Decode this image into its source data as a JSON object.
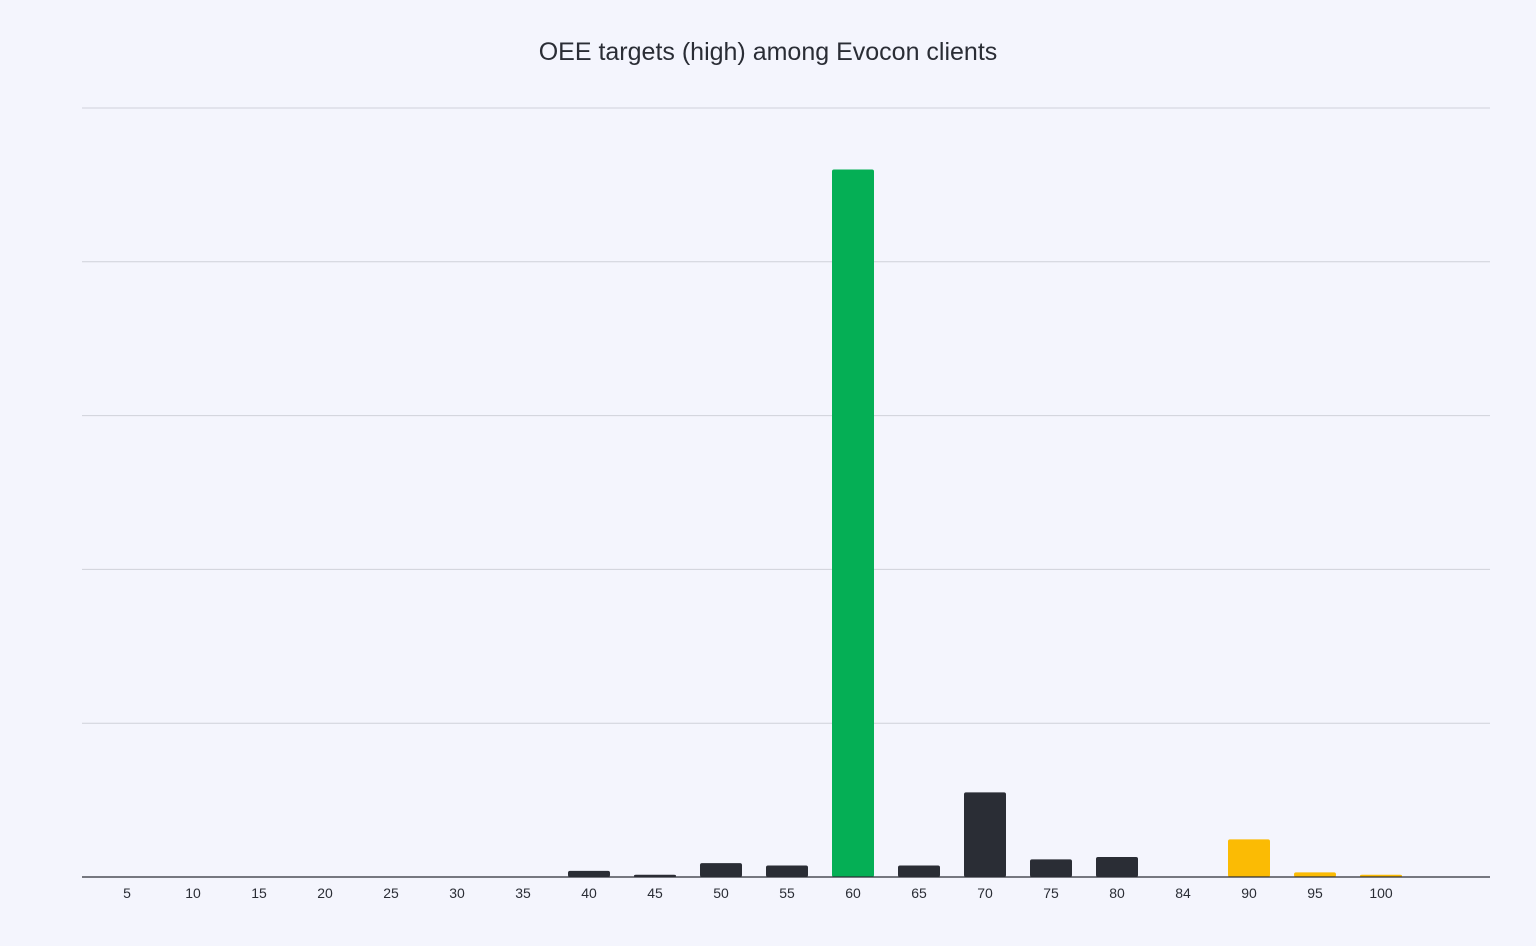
{
  "chart_data": {
    "type": "bar",
    "title": "OEE targets (high) among Evocon clients",
    "xlabel": "",
    "ylabel": "",
    "categories": [
      "5",
      "10",
      "15",
      "20",
      "25",
      "30",
      "35",
      "40",
      "45",
      "50",
      "55",
      "60",
      "65",
      "70",
      "75",
      "80",
      "84",
      "90",
      "95",
      "100"
    ],
    "values": [
      0,
      0,
      0,
      0,
      0,
      0,
      0,
      0.8,
      0.3,
      1.8,
      1.5,
      92,
      1.5,
      11,
      2.3,
      2.6,
      0,
      4.9,
      0.6,
      0.3
    ],
    "bar_colors": [
      "#2a2d35",
      "#2a2d35",
      "#2a2d35",
      "#2a2d35",
      "#2a2d35",
      "#2a2d35",
      "#2a2d35",
      "#2a2d35",
      "#2a2d35",
      "#2a2d35",
      "#2a2d35",
      "#05af55",
      "#2a2d35",
      "#2a2d35",
      "#2a2d35",
      "#2a2d35",
      "#2a2d35",
      "#fbbb04",
      "#fbbb04",
      "#fbbb04"
    ],
    "ylim": [
      0,
      100
    ],
    "grid": true,
    "gridline_count": 5,
    "legend": "none",
    "colors": {
      "background": "#f4f5fd",
      "grid": "#cfd1da",
      "axis": "#2a2d35",
      "text": "#2a2d35"
    }
  }
}
